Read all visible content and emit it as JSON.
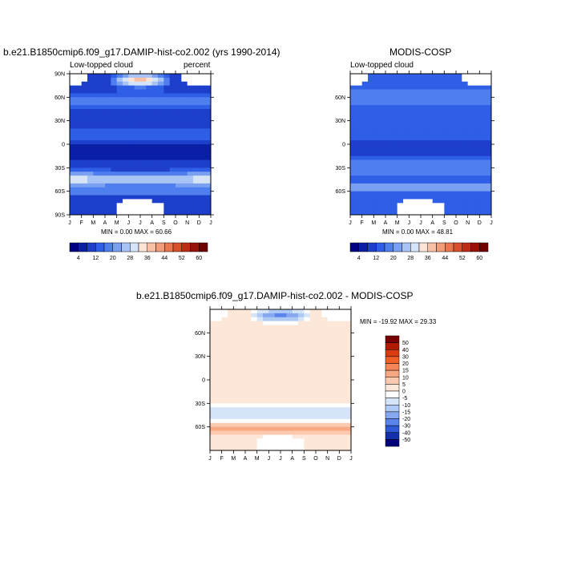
{
  "chart_data": [
    {
      "type": "heatmap",
      "title": "b.e21.B1850cmip6.f09_g17.DAMIP-hist-co2.002 (yrs 1990-2014)",
      "subtitle_left": "Low-topped cloud",
      "subtitle_right": "percent",
      "stats": "MIN =   0.00 MAX =  60.66",
      "x_ticks": [
        "J",
        "F",
        "M",
        "A",
        "M",
        "J",
        "J",
        "A",
        "S",
        "O",
        "N",
        "D",
        "J"
      ],
      "y_ticks": [
        "90N",
        "60N",
        "30N",
        "0",
        "30S",
        "60S",
        "90S"
      ],
      "y_tick_lats": [
        90,
        60,
        30,
        0,
        -30,
        -60,
        -90
      ],
      "ylim": [
        -90,
        90
      ],
      "colorbar_labels": [
        "4",
        "12",
        "20",
        "28",
        "36",
        "44",
        "52",
        "60"
      ],
      "colorbar_colors": [
        "#000080",
        "#0a1fa6",
        "#1d3fcc",
        "#2f5fe6",
        "#4f7fee",
        "#7aa0f2",
        "#a8c4f6",
        "#d6e4fa",
        "#fde4d6",
        "#f8c0a4",
        "#f29d79",
        "#e9764e",
        "#d8502b",
        "#bd2c14",
        "#961207",
        "#700000"
      ],
      "missing": "white"
    },
    {
      "type": "heatmap",
      "title": "MODIS-COSP",
      "subtitle_left": "Low-topped cloud",
      "stats": "MIN =   0.00 MAX =  48.81",
      "x_ticks": [
        "J",
        "F",
        "M",
        "A",
        "M",
        "J",
        "J",
        "A",
        "S",
        "O",
        "N",
        "D",
        "J"
      ],
      "y_ticks": [
        "60N",
        "30N",
        "0",
        "30S",
        "60S"
      ],
      "y_tick_lats": [
        60,
        30,
        0,
        -30,
        -60
      ],
      "ylim": [
        -90,
        90
      ],
      "colorbar_labels": [
        "4",
        "12",
        "20",
        "28",
        "36",
        "44",
        "52",
        "60"
      ],
      "colorbar_colors": [
        "#000080",
        "#0a1fa6",
        "#1d3fcc",
        "#2f5fe6",
        "#4f7fee",
        "#7aa0f2",
        "#a8c4f6",
        "#d6e4fa",
        "#fde4d6",
        "#f8c0a4",
        "#f29d79",
        "#e9764e",
        "#d8502b",
        "#bd2c14",
        "#961207",
        "#700000"
      ],
      "missing": "white"
    },
    {
      "type": "heatmap",
      "title": "b.e21.B1850cmip6.f09_g17.DAMIP-hist-co2.002 - MODIS-COSP",
      "stats": "MIN = -19.92 MAX =  29.33",
      "x_ticks": [
        "J",
        "F",
        "M",
        "A",
        "M",
        "J",
        "J",
        "A",
        "S",
        "O",
        "N",
        "D",
        "J"
      ],
      "y_ticks": [
        "60N",
        "30N",
        "0",
        "30S",
        "60S"
      ],
      "y_tick_lats": [
        60,
        30,
        0,
        -30,
        -60
      ],
      "ylim": [
        -90,
        90
      ],
      "colorbar_labels": [
        "50",
        "40",
        "30",
        "20",
        "15",
        "10",
        "5",
        "0",
        "-5",
        "-10",
        "-15",
        "-20",
        "-30",
        "-40",
        "-50"
      ],
      "colorbar_colors": [
        "#7a0000",
        "#b01a00",
        "#d83c10",
        "#ee6028",
        "#f58656",
        "#f8a882",
        "#fbcaae",
        "#fde7d8",
        "#ffffff",
        "#d6e4fa",
        "#b0caf6",
        "#86a8f0",
        "#5a84ea",
        "#2f5ad6",
        "#1230a8",
        "#00007a"
      ],
      "missing": "white"
    }
  ]
}
